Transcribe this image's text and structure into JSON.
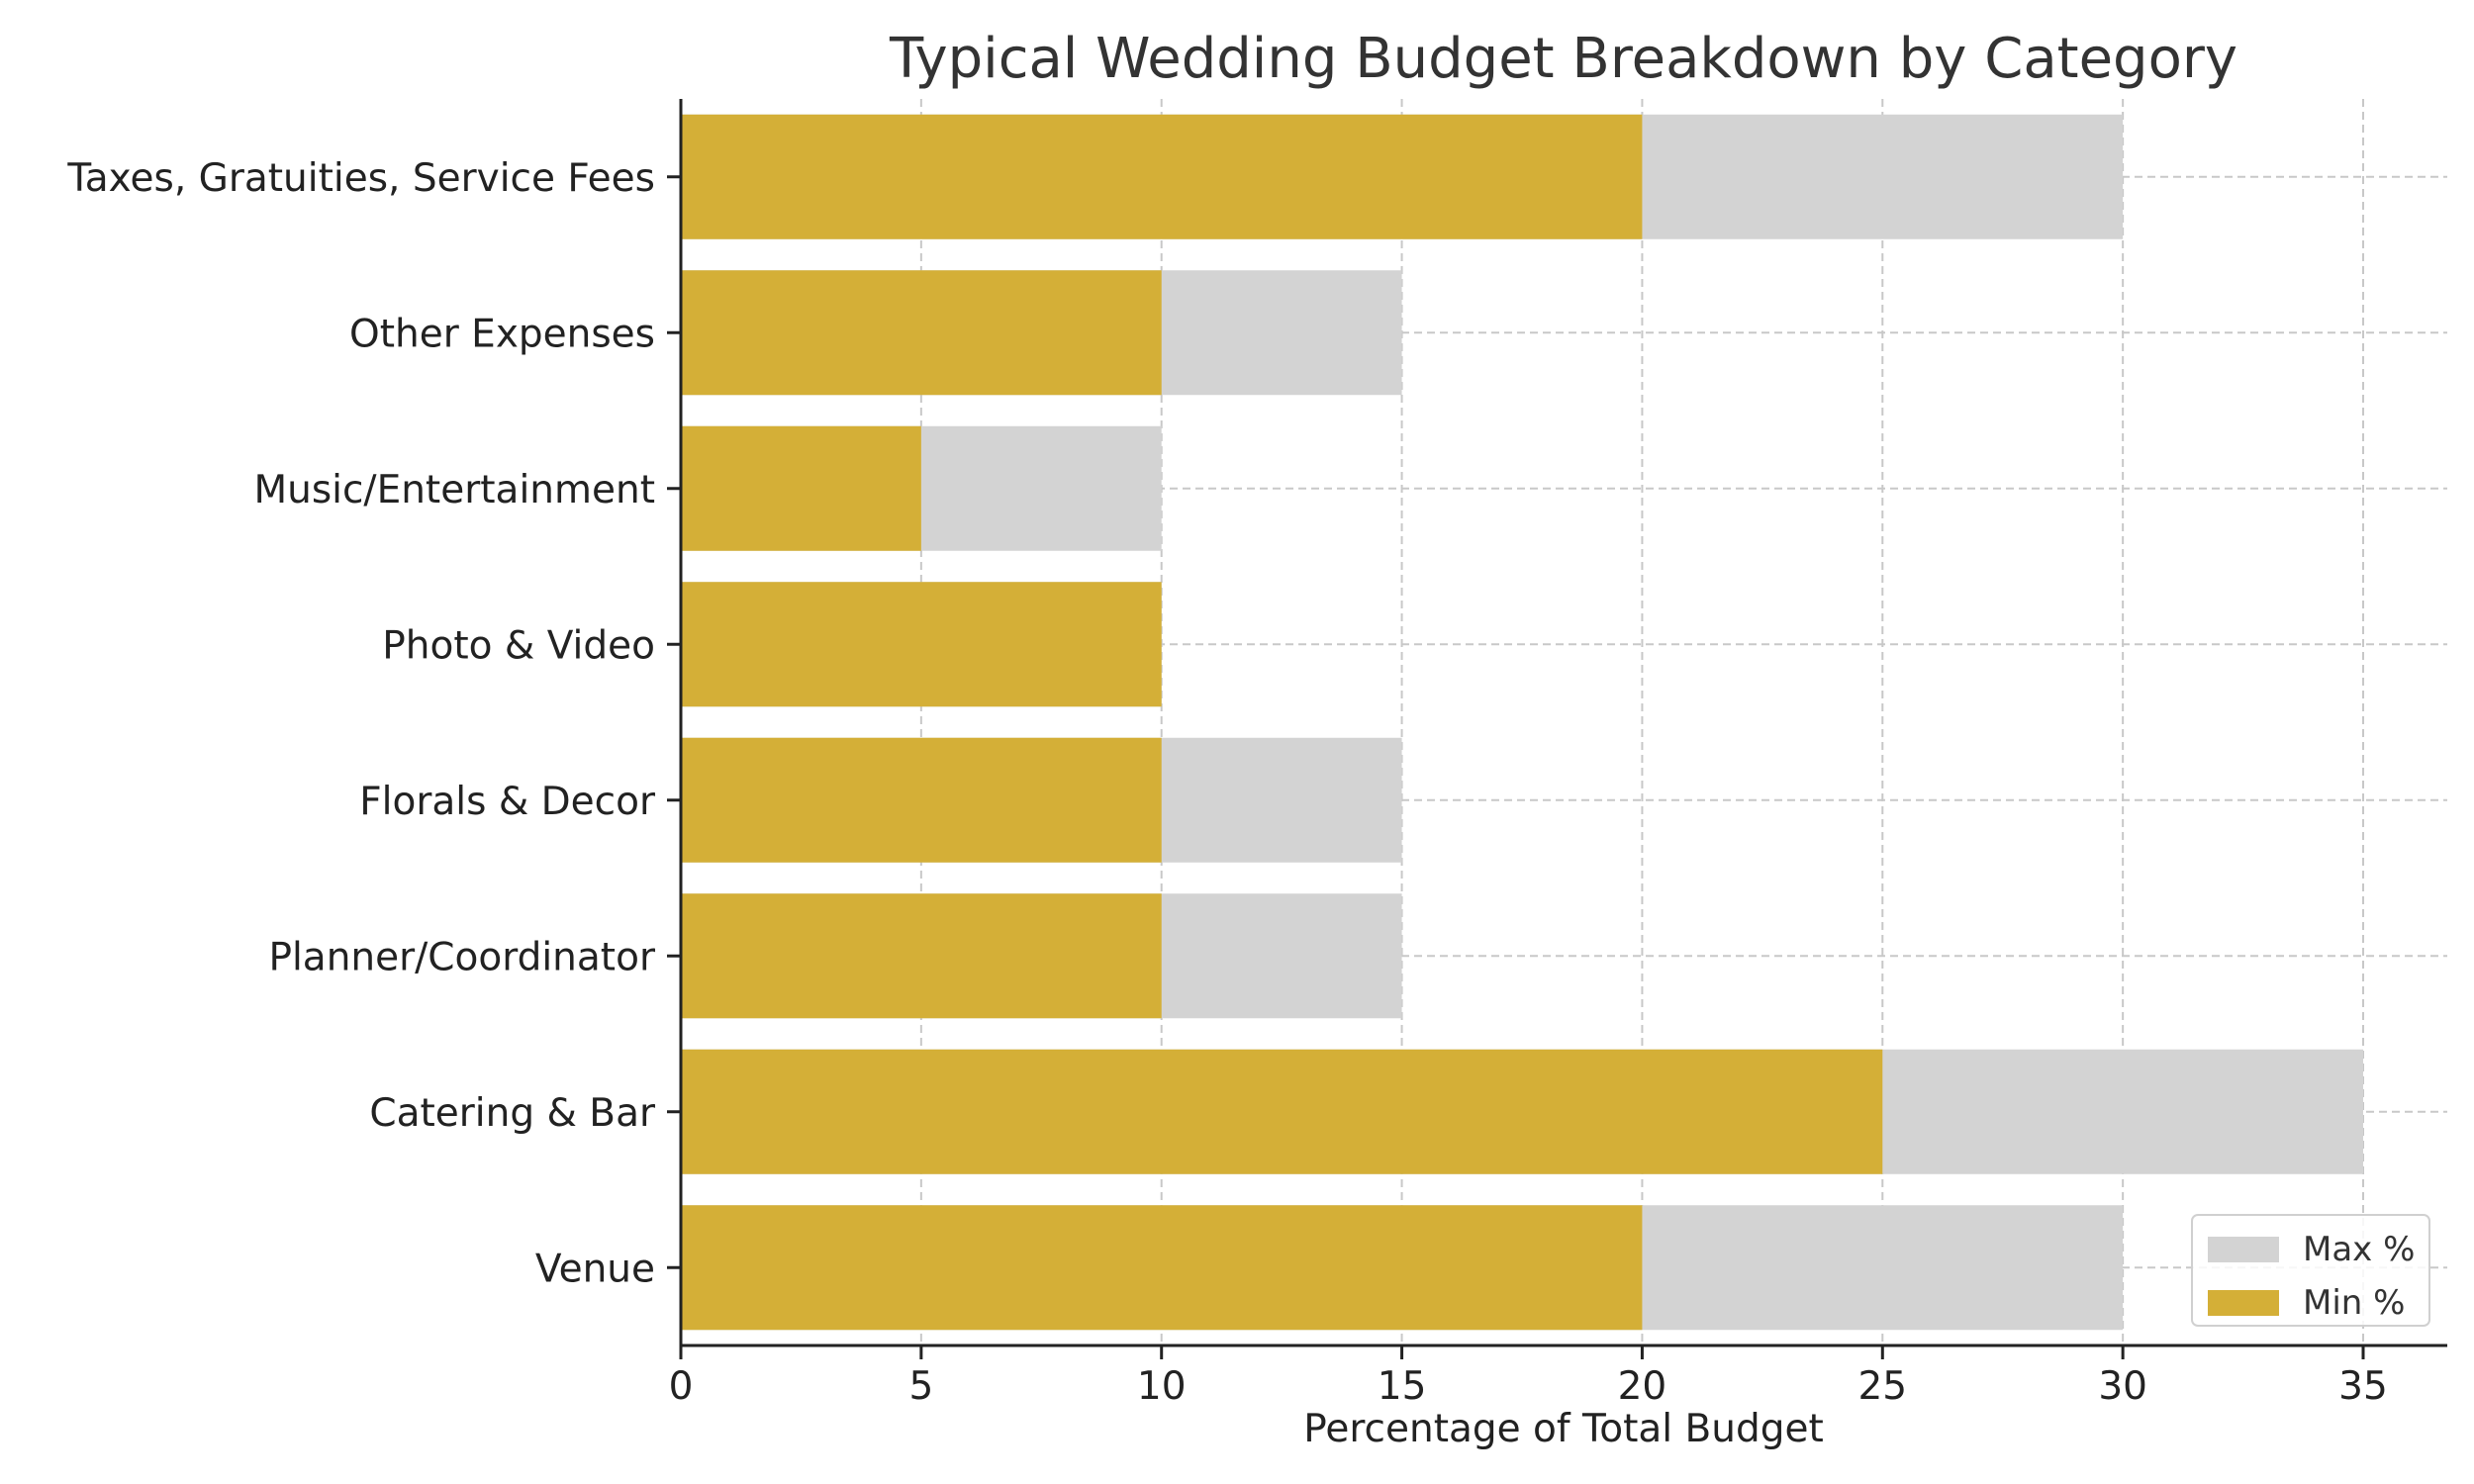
{
  "chart_data": {
    "type": "bar",
    "orientation": "horizontal",
    "title": "Typical Wedding Budget Breakdown by Category",
    "xlabel": "Percentage of Total Budget",
    "ylabel": "",
    "categories": [
      "Venue",
      "Catering & Bar",
      "Planner/Coordinator",
      "Florals & Decor",
      "Photo & Video",
      "Music/Entertainment",
      "Other Expenses",
      "Taxes, Gratuities, Service Fees"
    ],
    "series": [
      {
        "name": "Max %",
        "color": "#d3d3d3",
        "values": [
          30,
          35,
          15,
          15,
          10,
          10,
          15,
          30
        ]
      },
      {
        "name": "Min %",
        "color": "#d4af37",
        "values": [
          20,
          25,
          10,
          10,
          10,
          5,
          10,
          20
        ]
      }
    ],
    "xlim": [
      0,
      36.75
    ],
    "xticks": [
      0,
      5,
      10,
      15,
      20,
      25,
      30,
      35
    ],
    "xtick_labels": [
      "0",
      "5",
      "10",
      "15",
      "20",
      "25",
      "30",
      "35"
    ],
    "grid": true,
    "legend_position": "lower-right"
  }
}
